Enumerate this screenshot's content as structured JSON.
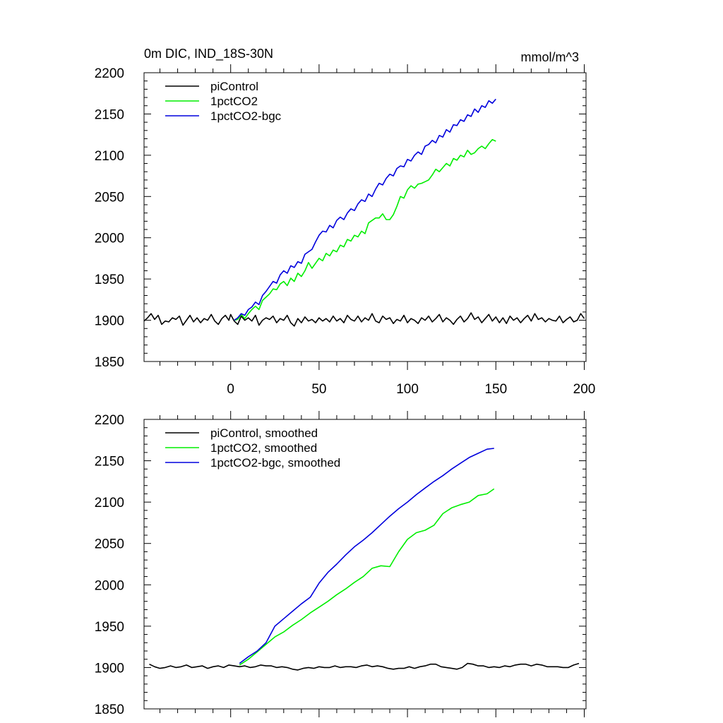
{
  "chart_data": [
    {
      "type": "line",
      "title_left": "0m DIC, IND_18S-30N",
      "title_right": "mmol/m^3",
      "xlim": [
        -49,
        201
      ],
      "ylim": [
        1850,
        2200
      ],
      "x_ticks": [
        0,
        50,
        100,
        150,
        200
      ],
      "x_tick_labels": [
        "0",
        "50",
        "100",
        "150",
        "200"
      ],
      "y_ticks": [
        1850,
        1900,
        1950,
        2000,
        2050,
        2100,
        2150,
        2200
      ],
      "y_tick_labels": [
        "1850",
        "1900",
        "1950",
        "2000",
        "2050",
        "2100",
        "2150",
        "2200"
      ],
      "legend_position": "top-left",
      "series": [
        {
          "name": "piControl",
          "color": "#000000",
          "x": [
            -49,
            -47,
            -45,
            -43,
            -41,
            -39,
            -37,
            -35,
            -33,
            -31,
            -29,
            -27,
            -25,
            -23,
            -21,
            -19,
            -17,
            -15,
            -13,
            -11,
            -9,
            -7,
            -5,
            -3,
            -1,
            0,
            2,
            4,
            6,
            8,
            10,
            12,
            14,
            16,
            18,
            20,
            22,
            24,
            26,
            28,
            30,
            32,
            34,
            36,
            38,
            40,
            42,
            44,
            46,
            48,
            50,
            52,
            54,
            56,
            58,
            60,
            62,
            64,
            66,
            68,
            70,
            72,
            74,
            76,
            78,
            80,
            82,
            84,
            86,
            88,
            90,
            92,
            94,
            96,
            98,
            100,
            102,
            104,
            106,
            108,
            110,
            112,
            114,
            116,
            118,
            120,
            122,
            124,
            126,
            128,
            130,
            132,
            134,
            136,
            138,
            140,
            142,
            144,
            146,
            148,
            150,
            152,
            154,
            156,
            158,
            160,
            162,
            164,
            166,
            168,
            170,
            172,
            174,
            176,
            178,
            180,
            182,
            184,
            186,
            188,
            190,
            192,
            194,
            196,
            198,
            200
          ],
          "values": [
            1899,
            1903,
            1908,
            1901,
            1906,
            1895,
            1899,
            1898,
            1903,
            1901,
            1905,
            1894,
            1900,
            1906,
            1898,
            1903,
            1897,
            1902,
            1900,
            1907,
            1899,
            1895,
            1902,
            1906,
            1900,
            1907,
            1899,
            1895,
            1905,
            1900,
            1903,
            1899,
            1906,
            1894,
            1900,
            1903,
            1901,
            1905,
            1897,
            1902,
            1900,
            1906,
            1897,
            1893,
            1902,
            1897,
            1904,
            1899,
            1901,
            1897,
            1903,
            1899,
            1902,
            1898,
            1905,
            1899,
            1902,
            1897,
            1906,
            1901,
            1899,
            1905,
            1898,
            1903,
            1900,
            1908,
            1899,
            1897,
            1905,
            1901,
            1903,
            1896,
            1901,
            1899,
            1906,
            1897,
            1902,
            1900,
            1896,
            1903,
            1900,
            1905,
            1898,
            1902,
            1907,
            1898,
            1903,
            1900,
            1895,
            1901,
            1905,
            1898,
            1902,
            1909,
            1901,
            1904,
            1897,
            1902,
            1907,
            1899,
            1904,
            1897,
            1903,
            1896,
            1905,
            1900,
            1903,
            1897,
            1902,
            1906,
            1899,
            1908,
            1901,
            1903,
            1898,
            1902,
            1900,
            1899,
            1905,
            1897,
            1901,
            1904,
            1898,
            1900,
            1908,
            1902
          ]
        },
        {
          "name": "1pctCO2",
          "color": "#00ee00",
          "x": [
            2,
            4,
            6,
            8,
            10,
            12,
            14,
            16,
            18,
            20,
            22,
            24,
            26,
            28,
            30,
            32,
            34,
            36,
            38,
            40,
            42,
            44,
            46,
            48,
            50,
            52,
            54,
            56,
            58,
            60,
            62,
            64,
            66,
            68,
            70,
            72,
            74,
            76,
            78,
            80,
            82,
            84,
            86,
            88,
            90,
            92,
            94,
            96,
            98,
            100,
            102,
            104,
            106,
            108,
            110,
            112,
            114,
            116,
            118,
            120,
            122,
            124,
            126,
            128,
            130,
            132,
            134,
            136,
            138,
            140,
            142,
            144,
            146,
            148,
            150
          ],
          "values": [
            1900,
            1901,
            1907,
            1902,
            1908,
            1913,
            1917,
            1913,
            1924,
            1928,
            1932,
            1938,
            1937,
            1944,
            1947,
            1942,
            1951,
            1947,
            1957,
            1953,
            1960,
            1970,
            1963,
            1969,
            1975,
            1972,
            1981,
            1978,
            1985,
            1983,
            1991,
            1989,
            1998,
            1996,
            2003,
            2001,
            2008,
            2005,
            2018,
            2021,
            2024,
            2024,
            2029,
            2022,
            2022,
            2028,
            2038,
            2050,
            2048,
            2058,
            2063,
            2060,
            2065,
            2066,
            2068,
            2070,
            2076,
            2083,
            2080,
            2085,
            2090,
            2087,
            2096,
            2094,
            2100,
            2098,
            2106,
            2101,
            2103,
            2108,
            2111,
            2108,
            2114,
            2119,
            2117
          ]
        },
        {
          "name": "1pctCO2-bgc",
          "color": "#0000dd",
          "x": [
            2,
            4,
            6,
            8,
            10,
            12,
            14,
            16,
            18,
            20,
            22,
            24,
            26,
            28,
            30,
            32,
            34,
            36,
            38,
            40,
            42,
            44,
            46,
            48,
            50,
            52,
            54,
            56,
            58,
            60,
            62,
            64,
            66,
            68,
            70,
            72,
            74,
            76,
            78,
            80,
            82,
            84,
            86,
            88,
            90,
            92,
            94,
            96,
            98,
            100,
            102,
            104,
            106,
            108,
            110,
            112,
            114,
            116,
            118,
            120,
            122,
            124,
            126,
            128,
            130,
            132,
            134,
            136,
            138,
            140,
            142,
            144,
            146,
            148,
            150
          ],
          "values": [
            1900,
            1903,
            1908,
            1906,
            1913,
            1916,
            1922,
            1919,
            1930,
            1935,
            1941,
            1947,
            1945,
            1955,
            1960,
            1957,
            1966,
            1964,
            1971,
            1969,
            1980,
            1983,
            1986,
            1995,
            2003,
            2008,
            2007,
            2015,
            2012,
            2021,
            2025,
            2022,
            2030,
            2035,
            2033,
            2041,
            2046,
            2044,
            2053,
            2050,
            2059,
            2066,
            2064,
            2072,
            2077,
            2075,
            2084,
            2087,
            2086,
            2095,
            2093,
            2100,
            2104,
            2101,
            2111,
            2113,
            2118,
            2115,
            2124,
            2122,
            2131,
            2128,
            2137,
            2136,
            2143,
            2141,
            2149,
            2147,
            2156,
            2152,
            2160,
            2158,
            2166,
            2163,
            2168
          ]
        }
      ]
    },
    {
      "type": "line",
      "xlim": [
        -49,
        201
      ],
      "ylim": [
        1850,
        2200
      ],
      "x_ticks": [
        0,
        50,
        100,
        150,
        200
      ],
      "y_ticks": [
        1850,
        1900,
        1950,
        2000,
        2050,
        2100,
        2150,
        2200
      ],
      "y_tick_labels": [
        "1850",
        "1900",
        "1950",
        "2000",
        "2050",
        "2100",
        "2150",
        "2200"
      ],
      "legend_position": "top-left",
      "series": [
        {
          "name": "piControl, smoothed",
          "color": "#000000",
          "x": [
            -46,
            -43,
            -40,
            -37,
            -34,
            -31,
            -28,
            -25,
            -22,
            -19,
            -16,
            -13,
            -10,
            -7,
            -4,
            -1,
            2,
            5,
            8,
            11,
            14,
            17,
            20,
            23,
            26,
            29,
            32,
            35,
            38,
            41,
            44,
            47,
            50,
            53,
            56,
            59,
            62,
            65,
            68,
            71,
            74,
            77,
            80,
            83,
            86,
            89,
            92,
            95,
            98,
            101,
            104,
            107,
            110,
            113,
            116,
            119,
            122,
            125,
            128,
            131,
            134,
            137,
            140,
            143,
            146,
            149,
            152,
            155,
            158,
            161,
            164,
            167,
            170,
            173,
            176,
            179,
            182,
            185,
            188,
            191,
            194,
            197
          ],
          "values": [
            1904,
            1901,
            1899,
            1900,
            1902,
            1900,
            1901,
            1903,
            1900,
            1901,
            1902,
            1899,
            1901,
            1902,
            1900,
            1903,
            1902,
            1901,
            1902,
            1900,
            1901,
            1903,
            1902,
            1902,
            1900,
            1901,
            1900,
            1898,
            1897,
            1899,
            1900,
            1899,
            1901,
            1900,
            1900,
            1902,
            1900,
            1901,
            1901,
            1900,
            1902,
            1903,
            1901,
            1902,
            1901,
            1899,
            1898,
            1899,
            1899,
            1901,
            1899,
            1901,
            1902,
            1904,
            1904,
            1901,
            1900,
            1899,
            1898,
            1900,
            1905,
            1904,
            1902,
            1902,
            1900,
            1901,
            1900,
            1902,
            1901,
            1903,
            1904,
            1904,
            1902,
            1904,
            1903,
            1901,
            1901,
            1901,
            1900,
            1900,
            1903,
            1905
          ]
        },
        {
          "name": "1pctCO2, smoothed",
          "color": "#00ee00",
          "x": [
            5,
            10,
            15,
            20,
            25,
            30,
            35,
            40,
            45,
            50,
            55,
            60,
            65,
            70,
            75,
            80,
            85,
            90,
            95,
            100,
            105,
            110,
            115,
            120,
            125,
            130,
            135,
            140,
            145,
            149
          ],
          "values": [
            1903,
            1910,
            1919,
            1928,
            1937,
            1943,
            1951,
            1958,
            1966,
            1973,
            1980,
            1988,
            1995,
            2003,
            2010,
            2020,
            2023,
            2022,
            2040,
            2055,
            2063,
            2066,
            2072,
            2086,
            2093,
            2097,
            2100,
            2108,
            2110,
            2116
          ]
        },
        {
          "name": "1pctCO2-bgc, smoothed",
          "color": "#0000dd",
          "x": [
            5,
            10,
            15,
            20,
            25,
            30,
            35,
            40,
            45,
            50,
            55,
            60,
            65,
            70,
            75,
            80,
            85,
            90,
            95,
            100,
            105,
            110,
            115,
            120,
            125,
            130,
            135,
            140,
            145,
            149
          ],
          "values": [
            1905,
            1913,
            1920,
            1930,
            1950,
            1959,
            1968,
            1977,
            1985,
            2002,
            2015,
            2025,
            2036,
            2046,
            2054,
            2063,
            2073,
            2083,
            2092,
            2100,
            2109,
            2117,
            2125,
            2132,
            2140,
            2147,
            2154,
            2159,
            2164,
            2165
          ]
        }
      ]
    }
  ]
}
